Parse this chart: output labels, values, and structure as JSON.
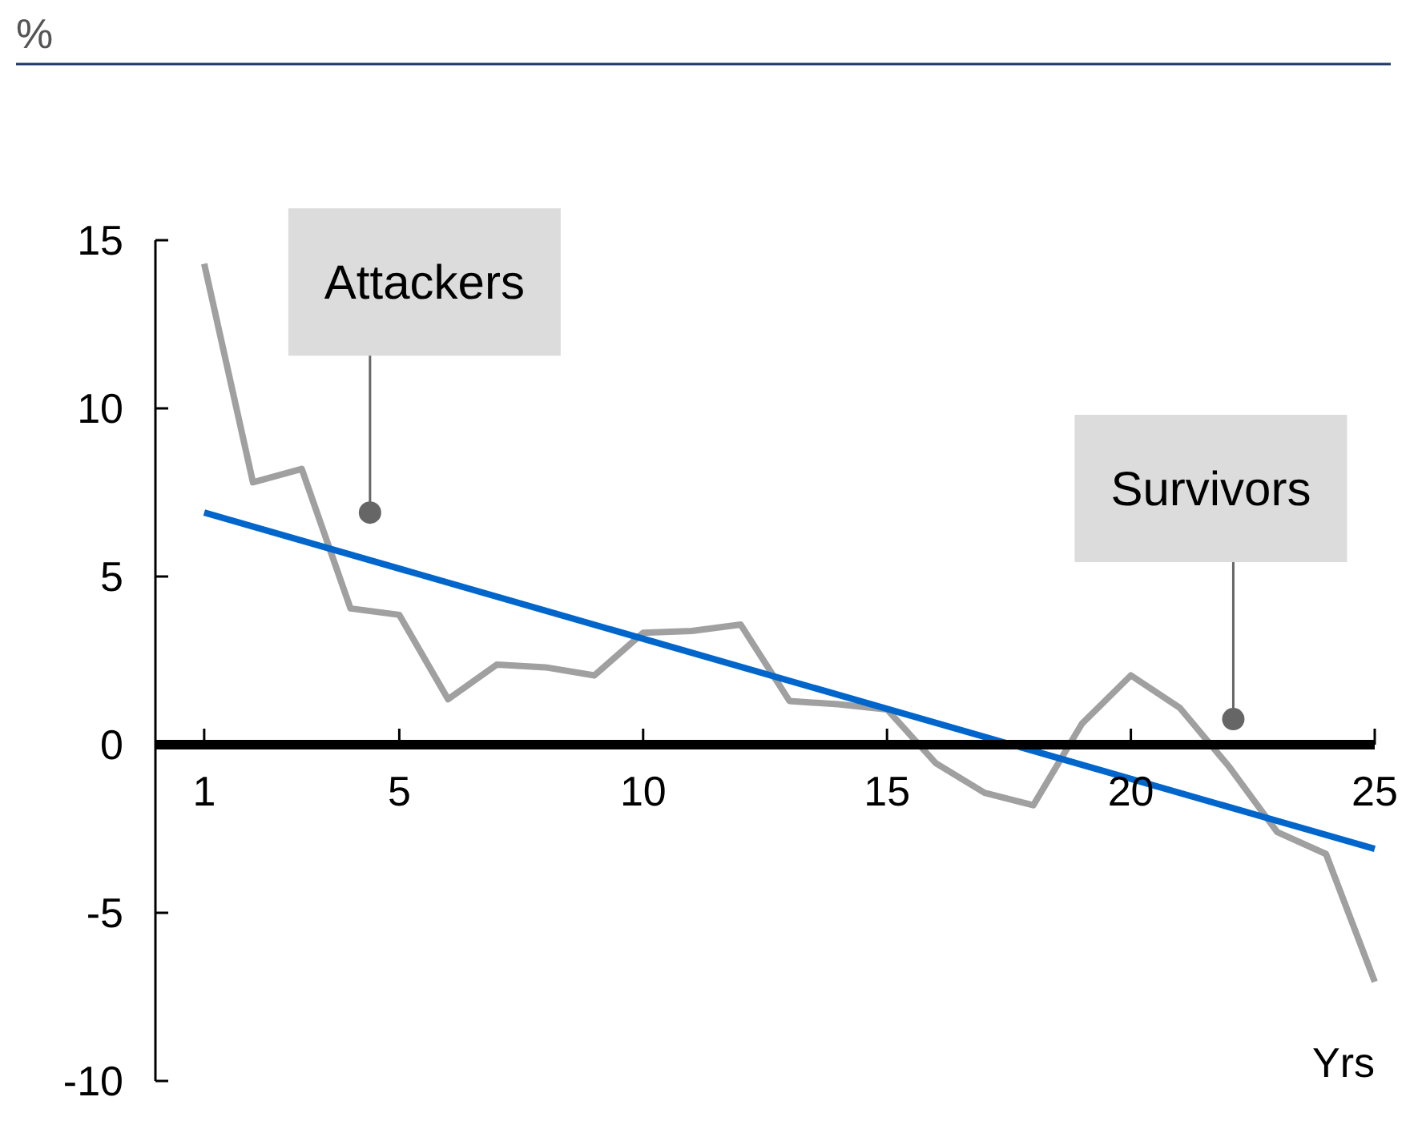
{
  "chart_data": {
    "type": "line",
    "ylabel": "%",
    "xlabel": "Yrs",
    "xlim": [
      0,
      25
    ],
    "ylim": [
      -10,
      15
    ],
    "xticks": [
      1,
      5,
      10,
      15,
      20,
      25
    ],
    "yticks": [
      -10,
      -5,
      0,
      5,
      10,
      15
    ],
    "grid": false,
    "marker": "none",
    "line_style": "solid",
    "series": [
      {
        "color": "#a0a0a0",
        "x": [
          1,
          2,
          3,
          4,
          5,
          6,
          7,
          8,
          9,
          10,
          11,
          12,
          13,
          14,
          15,
          16,
          17,
          18,
          19,
          20,
          21,
          22,
          23,
          24,
          25
        ],
        "values": [
          14.3,
          7.8,
          8.2,
          4.05,
          3.86,
          1.35,
          2.38,
          2.3,
          2.06,
          3.33,
          3.38,
          3.57,
          1.3,
          1.2,
          1.05,
          -0.55,
          -1.43,
          -1.8,
          0.63,
          2.06,
          1.1,
          -0.63,
          -2.6,
          -3.25,
          -7.05
        ]
      },
      {
        "color": "#0066cc",
        "x": [
          1,
          25
        ],
        "values": [
          6.9,
          -3.1
        ]
      }
    ],
    "annotations": [
      {
        "text": "Attackers",
        "x": 4.4,
        "y": 6.9
      },
      {
        "text": "Survivors",
        "x": 22.1,
        "y": 0.76
      }
    ]
  }
}
